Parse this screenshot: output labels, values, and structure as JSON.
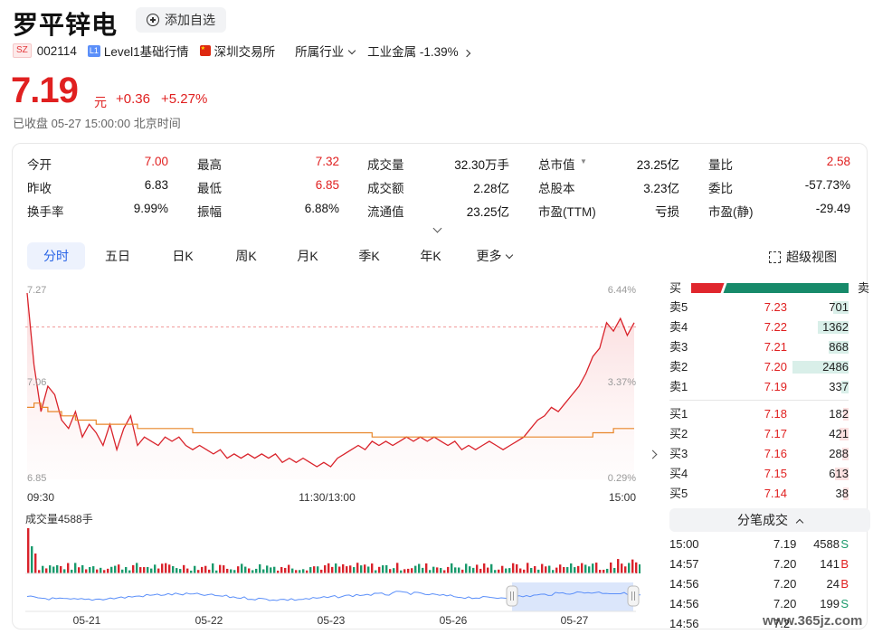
{
  "header": {
    "name": "罗平锌电",
    "add_fav": "添加自选",
    "market_tag": "SZ",
    "code": "002114",
    "level_tag": "L1",
    "level": "Level1基础行情",
    "exchange": "深圳交易所",
    "industry_label": "所属行业",
    "industry": "工业金属",
    "industry_change": "-1.39%"
  },
  "quote": {
    "price": "7.19",
    "unit": "元",
    "change": "+0.36",
    "change_pct": "+5.27%",
    "status": "已收盘  05-27 15:00:00 北京时间"
  },
  "stats": [
    [
      {
        "k": "今开",
        "v": "7.00",
        "red": true
      },
      {
        "k": "最高",
        "v": "7.32",
        "red": true
      },
      {
        "k": "成交量",
        "v": "32.30万手"
      },
      {
        "k": "总市值",
        "v": "23.25亿",
        "caret": true
      },
      {
        "k": "量比",
        "v": "2.58",
        "red": true
      }
    ],
    [
      {
        "k": "昨收",
        "v": "6.83"
      },
      {
        "k": "最低",
        "v": "6.85",
        "red": true
      },
      {
        "k": "成交额",
        "v": "2.28亿"
      },
      {
        "k": "总股本",
        "v": "3.23亿"
      },
      {
        "k": "委比",
        "v": "-57.73%"
      }
    ],
    [
      {
        "k": "换手率",
        "v": "9.99%"
      },
      {
        "k": "振幅",
        "v": "6.88%"
      },
      {
        "k": "流通值",
        "v": "23.25亿"
      },
      {
        "k": "市盈(TTM)",
        "v": "亏损"
      },
      {
        "k": "市盈(静)",
        "v": "-29.49"
      }
    ]
  ],
  "tabs": [
    "分时",
    "五日",
    "日K",
    "周K",
    "月K",
    "季K",
    "年K",
    "更多"
  ],
  "super_view": "超级视图",
  "chart_data": {
    "type": "line",
    "price_axis": {
      "top": "7.27",
      "mid": "7.06",
      "bottom": "6.85"
    },
    "pct_axis": {
      "top": "6.44%",
      "mid": "3.37%",
      "bottom": "0.29%"
    },
    "time_labels": [
      "09:30",
      "11:30/13:00",
      "15:00"
    ],
    "volume_label": "成交量4588手",
    "nav_dates": [
      "05-21",
      "05-22",
      "05-23",
      "05-26",
      "05-27"
    ],
    "prev_close": 6.83,
    "ylim": [
      6.83,
      7.27
    ],
    "price": [
      7.27,
      7.1,
      6.99,
      7.05,
      7.03,
      6.97,
      6.95,
      6.99,
      6.93,
      6.96,
      6.94,
      6.91,
      6.96,
      6.9,
      6.95,
      6.98,
      6.91,
      6.93,
      6.92,
      6.91,
      6.93,
      6.92,
      6.93,
      6.91,
      6.9,
      6.91,
      6.9,
      6.89,
      6.9,
      6.88,
      6.89,
      6.88,
      6.89,
      6.88,
      6.89,
      6.88,
      6.89,
      6.87,
      6.88,
      6.87,
      6.88,
      6.87,
      6.86,
      6.87,
      6.86,
      6.88,
      6.89,
      6.9,
      6.91,
      6.9,
      6.92,
      6.91,
      6.92,
      6.91,
      6.92,
      6.93,
      6.92,
      6.93,
      6.92,
      6.93,
      6.92,
      6.91,
      6.92,
      6.9,
      6.91,
      6.9,
      6.91,
      6.92,
      6.91,
      6.9,
      6.91,
      6.92,
      6.93,
      6.95,
      6.97,
      6.98,
      7.0,
      6.99,
      7.01,
      7.03,
      7.05,
      7.08,
      7.12,
      7.14,
      7.2,
      7.18,
      7.21,
      7.17,
      7.2
    ],
    "avg": [
      7.0,
      7.01,
      7.0,
      6.99,
      6.99,
      6.98,
      6.98,
      6.97,
      6.97,
      6.97,
      6.96,
      6.96,
      6.96,
      6.96,
      6.96,
      6.96,
      6.95,
      6.95,
      6.95,
      6.95,
      6.95,
      6.95,
      6.95,
      6.95,
      6.94,
      6.94,
      6.94,
      6.94,
      6.94,
      6.94,
      6.94,
      6.94,
      6.94,
      6.94,
      6.94,
      6.94,
      6.94,
      6.94,
      6.94,
      6.94,
      6.94,
      6.94,
      6.94,
      6.94,
      6.94,
      6.94,
      6.94,
      6.94,
      6.94,
      6.94,
      6.93,
      6.93,
      6.93,
      6.93,
      6.93,
      6.93,
      6.93,
      6.93,
      6.93,
      6.93,
      6.93,
      6.93,
      6.93,
      6.93,
      6.93,
      6.93,
      6.93,
      6.93,
      6.93,
      6.93,
      6.93,
      6.93,
      6.93,
      6.93,
      6.93,
      6.93,
      6.93,
      6.93,
      6.93,
      6.93,
      6.93,
      6.93,
      6.94,
      6.94,
      6.94,
      6.95,
      6.95,
      6.95,
      6.95
    ]
  },
  "order_book": {
    "head_buy": "买",
    "head_sell": "卖",
    "buy_ratio": 0.21,
    "sells": [
      {
        "label": "卖5",
        "price": "7.23",
        "vol": "701",
        "amount": 701
      },
      {
        "label": "卖4",
        "price": "7.22",
        "vol": "1362",
        "amount": 1362
      },
      {
        "label": "卖3",
        "price": "7.21",
        "vol": "868",
        "amount": 868
      },
      {
        "label": "卖2",
        "price": "7.20",
        "vol": "2486",
        "amount": 2486
      },
      {
        "label": "卖1",
        "price": "7.19",
        "vol": "337",
        "amount": 337
      }
    ],
    "buys": [
      {
        "label": "买1",
        "price": "7.18",
        "vol": "182",
        "amount": 182
      },
      {
        "label": "买2",
        "price": "7.17",
        "vol": "421",
        "amount": 421
      },
      {
        "label": "买3",
        "price": "7.16",
        "vol": "288",
        "amount": 288
      },
      {
        "label": "买4",
        "price": "7.15",
        "vol": "613",
        "amount": 613
      },
      {
        "label": "买5",
        "price": "7.14",
        "vol": "38",
        "amount": 38
      }
    ]
  },
  "trades_label": "分笔成交",
  "trades": [
    {
      "t": "15:00",
      "p": "7.19",
      "v": "4588",
      "d": "S"
    },
    {
      "t": "14:57",
      "p": "7.20",
      "v": "141",
      "d": "B"
    },
    {
      "t": "14:56",
      "p": "7.20",
      "v": "24",
      "d": "B"
    },
    {
      "t": "14:56",
      "p": "7.20",
      "v": "199",
      "d": "S"
    },
    {
      "t": "14:56",
      "p": "7.2",
      "v": "",
      "d": ""
    }
  ],
  "watermark": "www.365jz.com",
  "colors": {
    "up": "#e02020",
    "down": "#1a9a6c",
    "avg_line": "#e8862a",
    "accent": "#2864e6"
  }
}
